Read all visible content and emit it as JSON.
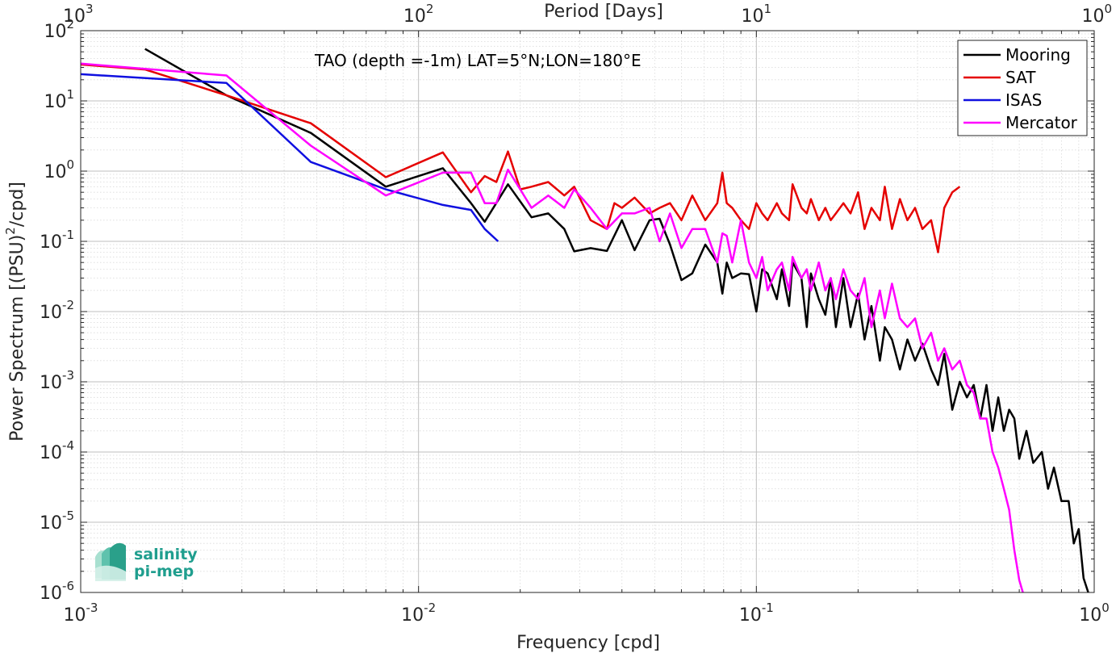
{
  "chart_data": {
    "type": "line",
    "title": "",
    "annotation": "TAO (depth =-1m) LAT=5°N;LON=180°E",
    "xlabel": "Frequency [cpd]",
    "ylabel_prefix": "Power Spectrum [(PSU)",
    "ylabel_sup": "2",
    "ylabel_suffix": "/cpd]",
    "top_xlabel": "Period [Days]",
    "x_scale": "log",
    "y_scale": "log",
    "xlim": [
      0.001,
      1
    ],
    "ylim": [
      1e-06,
      100
    ],
    "grid": true,
    "legend_position": "top-right",
    "x_ticks": [
      {
        "value": 0.001,
        "base": "10",
        "exp": "-3"
      },
      {
        "value": 0.01,
        "base": "10",
        "exp": "-2"
      },
      {
        "value": 0.1,
        "base": "10",
        "exp": "-1"
      },
      {
        "value": 1,
        "base": "10",
        "exp": "0"
      }
    ],
    "top_x_ticks": [
      {
        "frequency": 0.001,
        "base": "10",
        "exp": "3"
      },
      {
        "frequency": 0.01,
        "base": "10",
        "exp": "2"
      },
      {
        "frequency": 0.1,
        "base": "10",
        "exp": "1"
      },
      {
        "frequency": 1,
        "base": "10",
        "exp": "0"
      }
    ],
    "y_ticks": [
      {
        "value": 100,
        "base": "10",
        "exp": "2"
      },
      {
        "value": 10,
        "base": "10",
        "exp": "1"
      },
      {
        "value": 1,
        "base": "10",
        "exp": "0"
      },
      {
        "value": 0.1,
        "base": "10",
        "exp": "-1"
      },
      {
        "value": 0.01,
        "base": "10",
        "exp": "-2"
      },
      {
        "value": 0.001,
        "base": "10",
        "exp": "-3"
      },
      {
        "value": 0.0001,
        "base": "10",
        "exp": "-4"
      },
      {
        "value": 1e-05,
        "base": "10",
        "exp": "-5"
      },
      {
        "value": 1e-06,
        "base": "10",
        "exp": "-6"
      }
    ],
    "series": [
      {
        "name": "Mooring",
        "color": "#000000",
        "points": [
          [
            0.00155,
            55
          ],
          [
            0.0027,
            12
          ],
          [
            0.0048,
            3.5
          ],
          [
            0.008,
            0.6
          ],
          [
            0.0118,
            1.1
          ],
          [
            0.0143,
            0.35
          ],
          [
            0.0157,
            0.19
          ],
          [
            0.0184,
            0.65
          ],
          [
            0.0216,
            0.22
          ],
          [
            0.0242,
            0.25
          ],
          [
            0.027,
            0.15
          ],
          [
            0.0289,
            0.072
          ],
          [
            0.0323,
            0.08
          ],
          [
            0.0361,
            0.073
          ],
          [
            0.04,
            0.2
          ],
          [
            0.0436,
            0.075
          ],
          [
            0.0483,
            0.2
          ],
          [
            0.0517,
            0.21
          ],
          [
            0.0555,
            0.09
          ],
          [
            0.06,
            0.028
          ],
          [
            0.0646,
            0.035
          ],
          [
            0.0706,
            0.09
          ],
          [
            0.0766,
            0.05
          ],
          [
            0.0793,
            0.018
          ],
          [
            0.0817,
            0.05
          ],
          [
            0.0848,
            0.03
          ],
          [
            0.09,
            0.035
          ],
          [
            0.0951,
            0.034
          ],
          [
            0.1,
            0.01
          ],
          [
            0.104,
            0.04
          ],
          [
            0.108,
            0.035
          ],
          [
            0.115,
            0.015
          ],
          [
            0.119,
            0.04
          ],
          [
            0.125,
            0.012
          ],
          [
            0.128,
            0.05
          ],
          [
            0.136,
            0.03
          ],
          [
            0.141,
            0.006
          ],
          [
            0.145,
            0.035
          ],
          [
            0.153,
            0.015
          ],
          [
            0.16,
            0.009
          ],
          [
            0.166,
            0.03
          ],
          [
            0.172,
            0.006
          ],
          [
            0.181,
            0.03
          ],
          [
            0.19,
            0.006
          ],
          [
            0.2,
            0.018
          ],
          [
            0.209,
            0.004
          ],
          [
            0.219,
            0.012
          ],
          [
            0.232,
            0.002
          ],
          [
            0.24,
            0.006
          ],
          [
            0.252,
            0.004
          ],
          [
            0.266,
            0.0015
          ],
          [
            0.28,
            0.004
          ],
          [
            0.295,
            0.002
          ],
          [
            0.31,
            0.0035
          ],
          [
            0.329,
            0.0015
          ],
          [
            0.345,
            0.0009
          ],
          [
            0.36,
            0.0025
          ],
          [
            0.38,
            0.0004
          ],
          [
            0.4,
            0.001
          ],
          [
            0.42,
            0.0006
          ],
          [
            0.44,
            0.0009
          ],
          [
            0.46,
            0.0003
          ],
          [
            0.48,
            0.0009
          ],
          [
            0.5,
            0.0002
          ],
          [
            0.52,
            0.0006
          ],
          [
            0.54,
            0.0002
          ],
          [
            0.56,
            0.0004
          ],
          [
            0.58,
            0.0003
          ],
          [
            0.6,
            8e-05
          ],
          [
            0.63,
            0.0002
          ],
          [
            0.66,
            7e-05
          ],
          [
            0.7,
            0.0001
          ],
          [
            0.73,
            3e-05
          ],
          [
            0.76,
            6e-05
          ],
          [
            0.8,
            2e-05
          ],
          [
            0.84,
            2e-05
          ],
          [
            0.87,
            5e-06
          ],
          [
            0.9,
            8e-06
          ],
          [
            0.93,
            1.6e-06
          ],
          [
            0.96,
            1e-06
          ]
        ]
      },
      {
        "name": "SAT",
        "color": "#e50000",
        "points": [
          [
            0.001,
            33
          ],
          [
            0.00155,
            28
          ],
          [
            0.0027,
            12
          ],
          [
            0.0048,
            4.8
          ],
          [
            0.008,
            0.82
          ],
          [
            0.0118,
            1.85
          ],
          [
            0.0143,
            0.5
          ],
          [
            0.0157,
            0.85
          ],
          [
            0.017,
            0.7
          ],
          [
            0.0184,
            1.9
          ],
          [
            0.02,
            0.55
          ],
          [
            0.0216,
            0.6
          ],
          [
            0.0242,
            0.7
          ],
          [
            0.027,
            0.45
          ],
          [
            0.0289,
            0.6
          ],
          [
            0.0323,
            0.2
          ],
          [
            0.0361,
            0.15
          ],
          [
            0.038,
            0.35
          ],
          [
            0.04,
            0.3
          ],
          [
            0.0436,
            0.42
          ],
          [
            0.0483,
            0.25
          ],
          [
            0.0517,
            0.3
          ],
          [
            0.0555,
            0.35
          ],
          [
            0.06,
            0.2
          ],
          [
            0.0646,
            0.45
          ],
          [
            0.0706,
            0.2
          ],
          [
            0.0766,
            0.35
          ],
          [
            0.0793,
            0.95
          ],
          [
            0.0817,
            0.35
          ],
          [
            0.0848,
            0.3
          ],
          [
            0.09,
            0.2
          ],
          [
            0.0951,
            0.15
          ],
          [
            0.1,
            0.35
          ],
          [
            0.104,
            0.25
          ],
          [
            0.108,
            0.2
          ],
          [
            0.115,
            0.35
          ],
          [
            0.119,
            0.25
          ],
          [
            0.125,
            0.2
          ],
          [
            0.128,
            0.65
          ],
          [
            0.136,
            0.3
          ],
          [
            0.141,
            0.25
          ],
          [
            0.145,
            0.4
          ],
          [
            0.153,
            0.2
          ],
          [
            0.16,
            0.3
          ],
          [
            0.166,
            0.2
          ],
          [
            0.172,
            0.25
          ],
          [
            0.181,
            0.35
          ],
          [
            0.19,
            0.25
          ],
          [
            0.2,
            0.5
          ],
          [
            0.209,
            0.15
          ],
          [
            0.219,
            0.3
          ],
          [
            0.232,
            0.2
          ],
          [
            0.24,
            0.6
          ],
          [
            0.252,
            0.15
          ],
          [
            0.266,
            0.4
          ],
          [
            0.28,
            0.2
          ],
          [
            0.295,
            0.3
          ],
          [
            0.31,
            0.15
          ],
          [
            0.329,
            0.2
          ],
          [
            0.345,
            0.07
          ],
          [
            0.36,
            0.3
          ],
          [
            0.38,
            0.5
          ],
          [
            0.4,
            0.6
          ]
        ]
      },
      {
        "name": "ISAS",
        "color": "#1010e0",
        "points": [
          [
            0.001,
            24
          ],
          [
            0.0027,
            18
          ],
          [
            0.0048,
            1.35
          ],
          [
            0.008,
            0.55
          ],
          [
            0.0118,
            0.33
          ],
          [
            0.0143,
            0.28
          ],
          [
            0.0157,
            0.15
          ],
          [
            0.0172,
            0.1
          ]
        ]
      },
      {
        "name": "Mercator",
        "color": "#ff00ff",
        "points": [
          [
            0.001,
            34
          ],
          [
            0.0027,
            23
          ],
          [
            0.0048,
            2.3
          ],
          [
            0.008,
            0.45
          ],
          [
            0.0118,
            0.95
          ],
          [
            0.0143,
            0.95
          ],
          [
            0.0157,
            0.35
          ],
          [
            0.017,
            0.35
          ],
          [
            0.0184,
            1.05
          ],
          [
            0.02,
            0.55
          ],
          [
            0.0216,
            0.3
          ],
          [
            0.0242,
            0.45
          ],
          [
            0.027,
            0.3
          ],
          [
            0.0289,
            0.55
          ],
          [
            0.0323,
            0.3
          ],
          [
            0.0361,
            0.15
          ],
          [
            0.04,
            0.25
          ],
          [
            0.0436,
            0.25
          ],
          [
            0.0483,
            0.3
          ],
          [
            0.0517,
            0.1
          ],
          [
            0.0555,
            0.25
          ],
          [
            0.06,
            0.08
          ],
          [
            0.0646,
            0.15
          ],
          [
            0.0706,
            0.15
          ],
          [
            0.0766,
            0.05
          ],
          [
            0.0793,
            0.13
          ],
          [
            0.0817,
            0.12
          ],
          [
            0.0848,
            0.05
          ],
          [
            0.09,
            0.2
          ],
          [
            0.0951,
            0.05
          ],
          [
            0.1,
            0.03
          ],
          [
            0.104,
            0.06
          ],
          [
            0.108,
            0.02
          ],
          [
            0.115,
            0.04
          ],
          [
            0.119,
            0.05
          ],
          [
            0.125,
            0.02
          ],
          [
            0.128,
            0.06
          ],
          [
            0.136,
            0.03
          ],
          [
            0.141,
            0.04
          ],
          [
            0.145,
            0.02
          ],
          [
            0.153,
            0.05
          ],
          [
            0.16,
            0.02
          ],
          [
            0.166,
            0.03
          ],
          [
            0.172,
            0.015
          ],
          [
            0.181,
            0.04
          ],
          [
            0.19,
            0.02
          ],
          [
            0.2,
            0.015
          ],
          [
            0.209,
            0.03
          ],
          [
            0.219,
            0.006
          ],
          [
            0.232,
            0.02
          ],
          [
            0.24,
            0.008
          ],
          [
            0.252,
            0.025
          ],
          [
            0.266,
            0.008
          ],
          [
            0.28,
            0.006
          ],
          [
            0.295,
            0.008
          ],
          [
            0.31,
            0.003
          ],
          [
            0.329,
            0.005
          ],
          [
            0.345,
            0.002
          ],
          [
            0.36,
            0.003
          ],
          [
            0.38,
            0.0015
          ],
          [
            0.4,
            0.002
          ],
          [
            0.42,
            0.0009
          ],
          [
            0.44,
            0.0007
          ],
          [
            0.46,
            0.0003
          ],
          [
            0.48,
            0.0003
          ],
          [
            0.5,
            0.0001
          ],
          [
            0.52,
            6e-05
          ],
          [
            0.54,
            3e-05
          ],
          [
            0.56,
            1.5e-05
          ],
          [
            0.58,
            4e-06
          ],
          [
            0.6,
            1.5e-06
          ],
          [
            0.615,
            1e-06
          ]
        ]
      }
    ]
  },
  "logo": {
    "line1": "salinity",
    "line2": "pi-mep"
  }
}
